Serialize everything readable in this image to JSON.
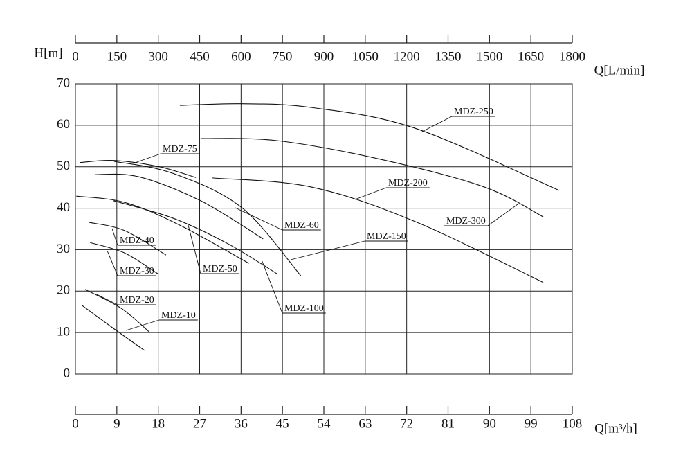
{
  "chart_data": {
    "type": "line",
    "y_label": "H[m]",
    "x_label": "Q[m³/h]",
    "x2_label": "Q[L/min]",
    "xlim": [
      0,
      108
    ],
    "xticks": [
      0,
      9,
      18,
      27,
      36,
      45,
      54,
      63,
      72,
      81,
      90,
      99,
      108
    ],
    "x2lim": [
      0,
      1800
    ],
    "x2ticks": [
      0,
      150,
      300,
      450,
      600,
      750,
      900,
      1050,
      1200,
      1350,
      1500,
      1650,
      1800
    ],
    "ylim": [
      0,
      70
    ],
    "yticks": [
      0,
      10,
      20,
      30,
      40,
      50,
      60,
      70
    ],
    "grid": true,
    "color": "#111111",
    "series": [
      {
        "name": "MDZ-10",
        "x": [
          1.5,
          8.4,
          15
        ],
        "values": [
          16.5,
          10.9,
          5.7
        ]
      },
      {
        "name": "MDZ-20",
        "x": [
          2.1,
          9.9,
          16.2
        ],
        "values": [
          20.4,
          15.9,
          10
        ]
      },
      {
        "name": "MDZ-30",
        "x": [
          3.2,
          10.7,
          17.9
        ],
        "values": [
          31.7,
          29.2,
          24.2
        ]
      },
      {
        "name": "MDZ-40",
        "x": [
          2.9,
          10.7,
          19.7
        ],
        "values": [
          36.6,
          34.6,
          28.7
        ]
      },
      {
        "name": "MDZ-50",
        "x": [
          0.2,
          10.7,
          22.7,
          37.7
        ],
        "values": [
          42.9,
          41.4,
          35.9,
          26.7
        ]
      },
      {
        "name": "MDZ-60",
        "x": [
          4.2,
          13.7,
          27.2,
          40.8
        ],
        "values": [
          48.1,
          47.6,
          41.8,
          32.6
        ]
      },
      {
        "name": "MDZ-75",
        "x": [
          0.9,
          8.4,
          18.2,
          26.2
        ],
        "values": [
          51,
          51.5,
          50,
          47.4
        ]
      },
      {
        "name": "MDZ-100",
        "x": [
          8.3,
          21.2,
          33.2,
          43.8
        ],
        "values": [
          41.8,
          37.6,
          31.4,
          24.2
        ]
      },
      {
        "name": "MDZ-150",
        "x": [
          8.4,
          21.2,
          36.2,
          49
        ],
        "values": [
          51.3,
          48.4,
          40.1,
          23.7
        ]
      },
      {
        "name": "MDZ-200",
        "x": [
          29.8,
          51.3,
          73.8,
          101.7
        ],
        "values": [
          47.3,
          45.1,
          36.8,
          22.1
        ]
      },
      {
        "name": "MDZ-250",
        "x": [
          22.7,
          36.2,
          51.3,
          73.8,
          105.1
        ],
        "values": [
          64.8,
          65.2,
          64.3,
          59.3,
          44.3
        ]
      },
      {
        "name": "MDZ-300",
        "x": [
          27.2,
          43.8,
          66.3,
          88.9,
          101.7
        ],
        "values": [
          56.8,
          56.3,
          51.8,
          45.1,
          37.9
        ]
      }
    ]
  }
}
